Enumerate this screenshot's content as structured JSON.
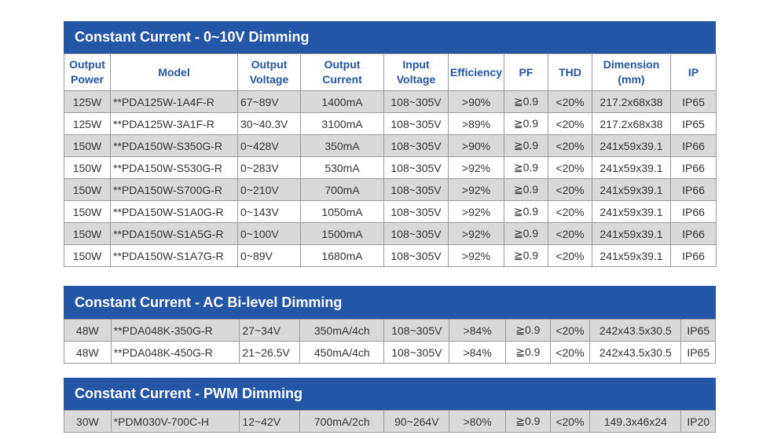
{
  "headers": {
    "output_power": [
      "Output",
      "Power"
    ],
    "model": "Model",
    "output_voltage": [
      "Output",
      "Voltage"
    ],
    "output_current": [
      "Output",
      "Current"
    ],
    "input_voltage": [
      "Input",
      "Voltage"
    ],
    "efficiency": "Efficiency",
    "pf": "PF",
    "thd": "THD",
    "dimension": [
      "Dimension",
      "(mm)"
    ],
    "ip": "IP"
  },
  "sections": [
    {
      "title": "Constant Current - 0~10V Dimming",
      "rows": [
        [
          "125W",
          "**PDA125W-1A4F-R",
          "67~89V",
          "1400mA",
          "108~305V",
          ">90%",
          "≧0.9",
          "<20%",
          "217.2x68x38",
          "IP65"
        ],
        [
          "125W",
          "**PDA125W-3A1F-R",
          "30~40.3V",
          "3100mA",
          "108~305V",
          ">89%",
          "≧0.9",
          "<20%",
          "217.2x68x38",
          "IP65"
        ],
        [
          "150W",
          "**PDA150W-S350G-R",
          "0~428V",
          "350mA",
          "108~305V",
          ">90%",
          "≧0.9",
          "<20%",
          "241x59x39.1",
          "IP66"
        ],
        [
          "150W",
          "**PDA150W-S530G-R",
          "0~283V",
          "530mA",
          "108~305V",
          ">92%",
          "≧0.9",
          "<20%",
          "241x59x39.1",
          "IP66"
        ],
        [
          "150W",
          "**PDA150W-S700G-R",
          "0~210V",
          "700mA",
          "108~305V",
          ">92%",
          "≧0.9",
          "<20%",
          "241x59x39.1",
          "IP66"
        ],
        [
          "150W",
          "**PDA150W-S1A0G-R",
          "0~143V",
          "1050mA",
          "108~305V",
          ">92%",
          "≧0.9",
          "<20%",
          "241x59x39.1",
          "IP66"
        ],
        [
          "150W",
          "**PDA150W-S1A5G-R",
          "0~100V",
          "1500mA",
          "108~305V",
          ">92%",
          "≧0.9",
          "<20%",
          "241x59x39.1",
          "IP66"
        ],
        [
          "150W",
          "**PDA150W-S1A7G-R",
          "0~89V",
          "1680mA",
          "108~305V",
          ">92%",
          "≧0.9",
          "<20%",
          "241x59x39.1",
          "IP66"
        ]
      ]
    },
    {
      "title": "Constant Current - AC Bi-level Dimming",
      "rows": [
        [
          "48W",
          "**PDA048K-350G-R",
          "27~34V",
          "350mA/4ch",
          "108~305V",
          ">84%",
          "≧0.9",
          "<20%",
          "242x43.5x30.5",
          "IP65"
        ],
        [
          "48W",
          "**PDA048K-450G-R",
          "21~26.5V",
          "450mA/4ch",
          "108~305V",
          ">84%",
          "≧0.9",
          "<20%",
          "242x43.5x30.5",
          "IP65"
        ]
      ]
    },
    {
      "title": "Constant Current - PWM Dimming",
      "rows": [
        [
          "30W",
          "*PDM030V-700C-H",
          "12~42V",
          "700mA/2ch",
          "90~264V",
          ">80%",
          "≧0.9",
          "<20%",
          "149.3x46x24",
          "IP20"
        ]
      ]
    }
  ]
}
